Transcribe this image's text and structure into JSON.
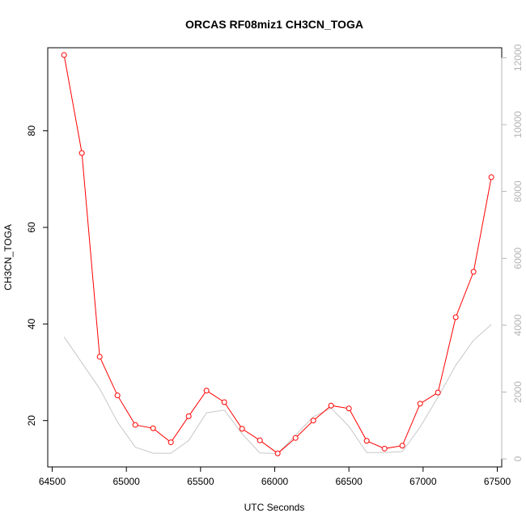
{
  "chart_data": {
    "type": "line",
    "title": "ORCAS RF08miz1 CH3CN_TOGA",
    "xlabel": "UTC Seconds",
    "ylabel": "CH3CN_TOGA",
    "xlim": [
      64470,
      67530
    ],
    "ylim": [
      10.4,
      97.2
    ],
    "y2lim": [
      -240,
      12300
    ],
    "x_ticks": [
      64500,
      65000,
      65500,
      66000,
      66500,
      67000,
      67500
    ],
    "y_ticks": [
      20,
      40,
      60,
      80
    ],
    "y2_ticks": [
      0,
      2000,
      4000,
      6000,
      8000,
      10000,
      12000
    ],
    "grid": false,
    "series": [
      {
        "axis": "left",
        "color": "#ff0000",
        "marker": "open-circle",
        "x": [
          64580,
          64700,
          64820,
          64940,
          65060,
          65180,
          65300,
          65420,
          65540,
          65660,
          65780,
          65900,
          66020,
          66140,
          66260,
          66380,
          66500,
          66620,
          66740,
          66860,
          66980,
          67100,
          67220,
          67340,
          67460
        ],
        "values": [
          95.7,
          75.4,
          33.2,
          25.2,
          19.1,
          18.4,
          15.5,
          20.9,
          26.2,
          23.8,
          18.3,
          15.9,
          13.2,
          16.4,
          20.0,
          23.1,
          22.5,
          15.8,
          14.2,
          14.8,
          23.5,
          25.8,
          41.4,
          50.8,
          70.4
        ]
      },
      {
        "axis": "right",
        "color": "#c8c8c8",
        "x": [
          64580,
          64820,
          64940,
          65060,
          65180,
          65300,
          65420,
          65540,
          65660,
          65780,
          65900,
          66020,
          66260,
          66380,
          66500,
          66620,
          66740,
          66860,
          66980,
          67100,
          67220,
          67340,
          67460
        ],
        "values": [
          3650,
          2100,
          1100,
          350,
          170,
          170,
          550,
          1380,
          1460,
          750,
          180,
          160,
          1260,
          1520,
          970,
          190,
          190,
          220,
          950,
          1850,
          2800,
          3550,
          4020
        ]
      }
    ]
  }
}
